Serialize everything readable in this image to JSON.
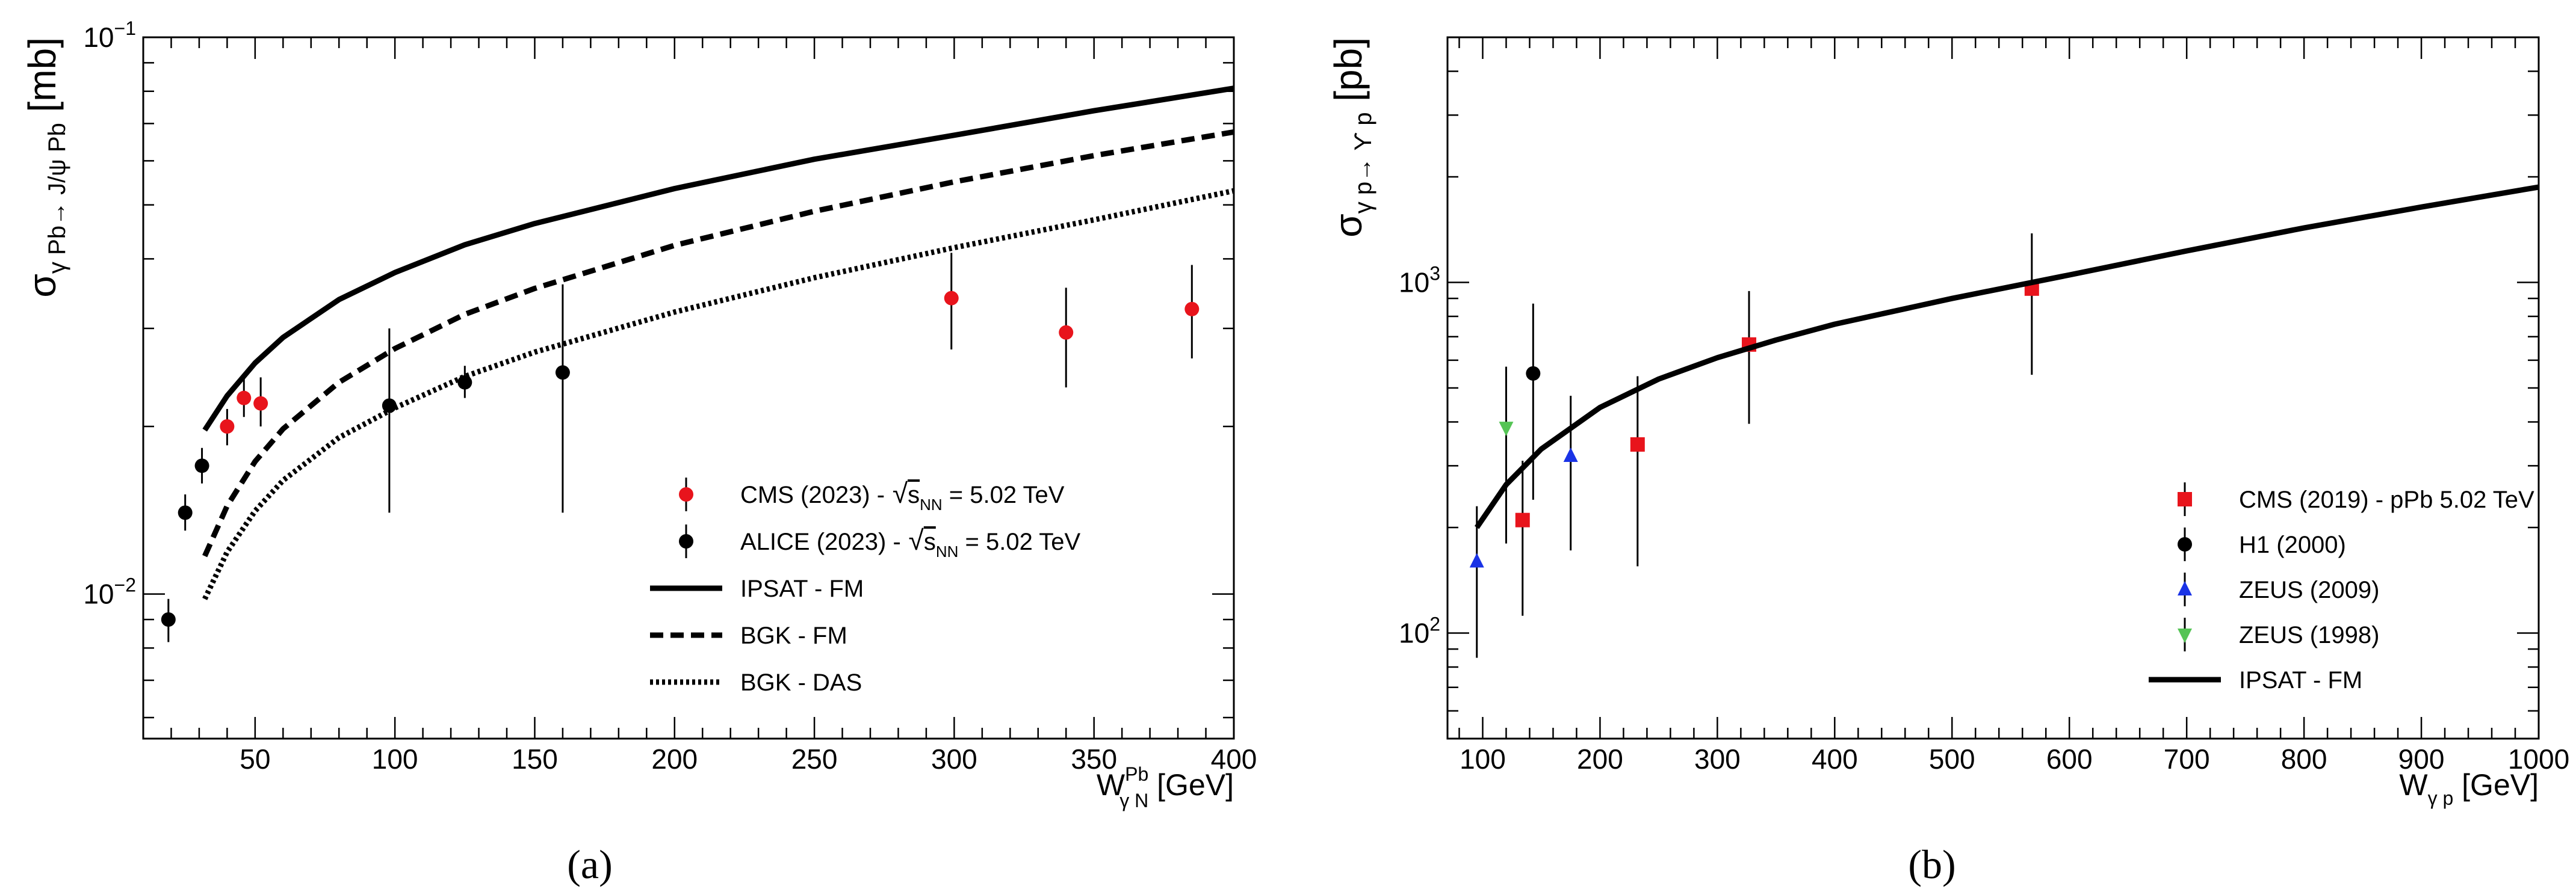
{
  "chart_data": [
    {
      "type": "scatter",
      "panel_label": "(a)",
      "xlabel": {
        "main": "W",
        "sub": "γ N",
        "sup": "Pb",
        "unit": "[GeV]"
      },
      "ylabel": {
        "main": "σ",
        "sub": "γ Pb→ J/ψ Pb",
        "unit": "[mb]"
      },
      "xlim": [
        10,
        400
      ],
      "ylim": [
        0.0055,
        0.1
      ],
      "yscale": "log",
      "x_ticks": [
        50,
        100,
        150,
        200,
        250,
        300,
        350,
        400
      ],
      "y_tick_labels": [
        {
          "value": 0.1,
          "base": "10",
          "exp": "−1"
        },
        {
          "value": 0.01,
          "base": "10",
          "exp": "−2"
        }
      ],
      "legend": [
        {
          "label": "CMS (2023) -",
          "root": "s",
          "root_sub": "NN",
          "suffix": "= 5.02 TeV",
          "marker": "circle",
          "color": "#e8141c"
        },
        {
          "label": "ALICE (2023) -",
          "root": "s",
          "root_sub": "NN",
          "suffix": "= 5.02 TeV",
          "marker": "circle",
          "color": "#000000"
        },
        {
          "label": "IPSAT - FM",
          "style": "solid"
        },
        {
          "label": "BGK - FM",
          "style": "dashed"
        },
        {
          "label": "BGK - DAS",
          "style": "dotted"
        }
      ],
      "series": [
        {
          "name": "CMS (2023)",
          "color": "#e8141c",
          "marker": "circle",
          "points": [
            {
              "x": 40,
              "y": 0.02,
              "lo": 0.0185,
              "hi": 0.0215
            },
            {
              "x": 46,
              "y": 0.0225,
              "lo": 0.0208,
              "hi": 0.0245
            },
            {
              "x": 52,
              "y": 0.022,
              "lo": 0.02,
              "hi": 0.0245
            },
            {
              "x": 299,
              "y": 0.034,
              "lo": 0.0275,
              "hi": 0.041
            },
            {
              "x": 340,
              "y": 0.0295,
              "lo": 0.0235,
              "hi": 0.0355
            },
            {
              "x": 385,
              "y": 0.0325,
              "lo": 0.0265,
              "hi": 0.039
            }
          ]
        },
        {
          "name": "ALICE (2023)",
          "color": "#000000",
          "marker": "circle",
          "points": [
            {
              "x": 19,
              "y": 0.009,
              "lo": 0.0082,
              "hi": 0.0098
            },
            {
              "x": 25,
              "y": 0.014,
              "lo": 0.013,
              "hi": 0.0151
            },
            {
              "x": 31,
              "y": 0.017,
              "lo": 0.0158,
              "hi": 0.0183
            },
            {
              "x": 98,
              "y": 0.0218,
              "lo": 0.014,
              "hi": 0.03
            },
            {
              "x": 125,
              "y": 0.024,
              "lo": 0.0225,
              "hi": 0.0257
            },
            {
              "x": 160,
              "y": 0.025,
              "lo": 0.014,
              "hi": 0.036
            }
          ]
        },
        {
          "name": "IPSAT - FM",
          "style": "solid",
          "x": [
            32,
            40,
            50,
            60,
            80,
            100,
            125,
            150,
            200,
            250,
            300,
            350,
            400
          ],
          "y": [
            0.0197,
            0.0227,
            0.026,
            0.0289,
            0.0338,
            0.0378,
            0.0424,
            0.0463,
            0.0535,
            0.0604,
            0.0667,
            0.0738,
            0.081
          ]
        },
        {
          "name": "BGK - FM",
          "style": "dashed",
          "x": [
            32,
            40,
            50,
            60,
            80,
            100,
            125,
            150,
            200,
            250,
            300,
            350,
            400
          ],
          "y": [
            0.0117,
            0.0144,
            0.0173,
            0.0198,
            0.024,
            0.0276,
            0.0318,
            0.0354,
            0.0423,
            0.0487,
            0.055,
            0.0613,
            0.0676
          ]
        },
        {
          "name": "BGK - DAS",
          "style": "dotted",
          "x": [
            32,
            40,
            50,
            60,
            80,
            100,
            125,
            150,
            200,
            250,
            300,
            350,
            400
          ],
          "y": [
            0.0098,
            0.0119,
            0.0141,
            0.016,
            0.0191,
            0.0216,
            0.0246,
            0.0272,
            0.0321,
            0.037,
            0.0419,
            0.047,
            0.053
          ]
        }
      ]
    },
    {
      "type": "scatter",
      "panel_label": "(b)",
      "xlabel": {
        "main": "W",
        "sub": "γ p",
        "unit": "[GeV]"
      },
      "ylabel": {
        "main": "σ",
        "sub": "γ p→ ϒ p",
        "unit": "[pb]"
      },
      "xlim": [
        70,
        1000
      ],
      "ylim": [
        50,
        5000
      ],
      "yscale": "log",
      "x_ticks": [
        100,
        200,
        300,
        400,
        500,
        600,
        700,
        800,
        900,
        1000
      ],
      "y_tick_labels": [
        {
          "value": 100,
          "base": "10",
          "exp": "2"
        },
        {
          "value": 1000,
          "base": "10",
          "exp": "3"
        }
      ],
      "legend": [
        {
          "label": "CMS (2019) - pPb 5.02 TeV",
          "marker": "square",
          "color": "#e8141c"
        },
        {
          "label": "H1 (2000)",
          "marker": "circle",
          "color": "#000000"
        },
        {
          "label": "ZEUS (2009)",
          "marker": "triangle-up",
          "color": "#1a33e6"
        },
        {
          "label": "ZEUS (1998)",
          "marker": "triangle-down",
          "color": "#55c455"
        },
        {
          "label": "IPSAT - FM",
          "style": "solid"
        }
      ],
      "series": [
        {
          "name": "CMS (2019) - pPb 5.02 TeV",
          "color": "#e8141c",
          "marker": "square",
          "points": [
            {
              "x": 134,
              "y": 210,
              "lo": 112,
              "hi": 310
            },
            {
              "x": 232,
              "y": 345,
              "lo": 155,
              "hi": 540
            },
            {
              "x": 327,
              "y": 665,
              "lo": 395,
              "hi": 945
            },
            {
              "x": 568,
              "y": 960,
              "lo": 545,
              "hi": 1380
            }
          ]
        },
        {
          "name": "H1 (2000)",
          "color": "#000000",
          "marker": "circle",
          "points": [
            {
              "x": 143,
              "y": 550,
              "lo": 240,
              "hi": 870
            }
          ]
        },
        {
          "name": "ZEUS (2009)",
          "color": "#1a33e6",
          "marker": "triangle-up",
          "points": [
            {
              "x": 95,
              "y": 160,
              "lo": 85,
              "hi": 230
            },
            {
              "x": 175,
              "y": 320,
              "lo": 172,
              "hi": 475
            }
          ]
        },
        {
          "name": "ZEUS (1998)",
          "color": "#55c455",
          "marker": "triangle-down",
          "points": [
            {
              "x": 120,
              "y": 385,
              "lo": 180,
              "hi": 575
            }
          ]
        },
        {
          "name": "IPSAT - FM",
          "style": "solid",
          "x": [
            95,
            120,
            150,
            200,
            250,
            300,
            350,
            400,
            500,
            600,
            700,
            800,
            900,
            1000
          ],
          "y": [
            200,
            265,
            335,
            440,
            530,
            610,
            685,
            760,
            900,
            1050,
            1230,
            1430,
            1640,
            1870
          ]
        }
      ]
    }
  ]
}
